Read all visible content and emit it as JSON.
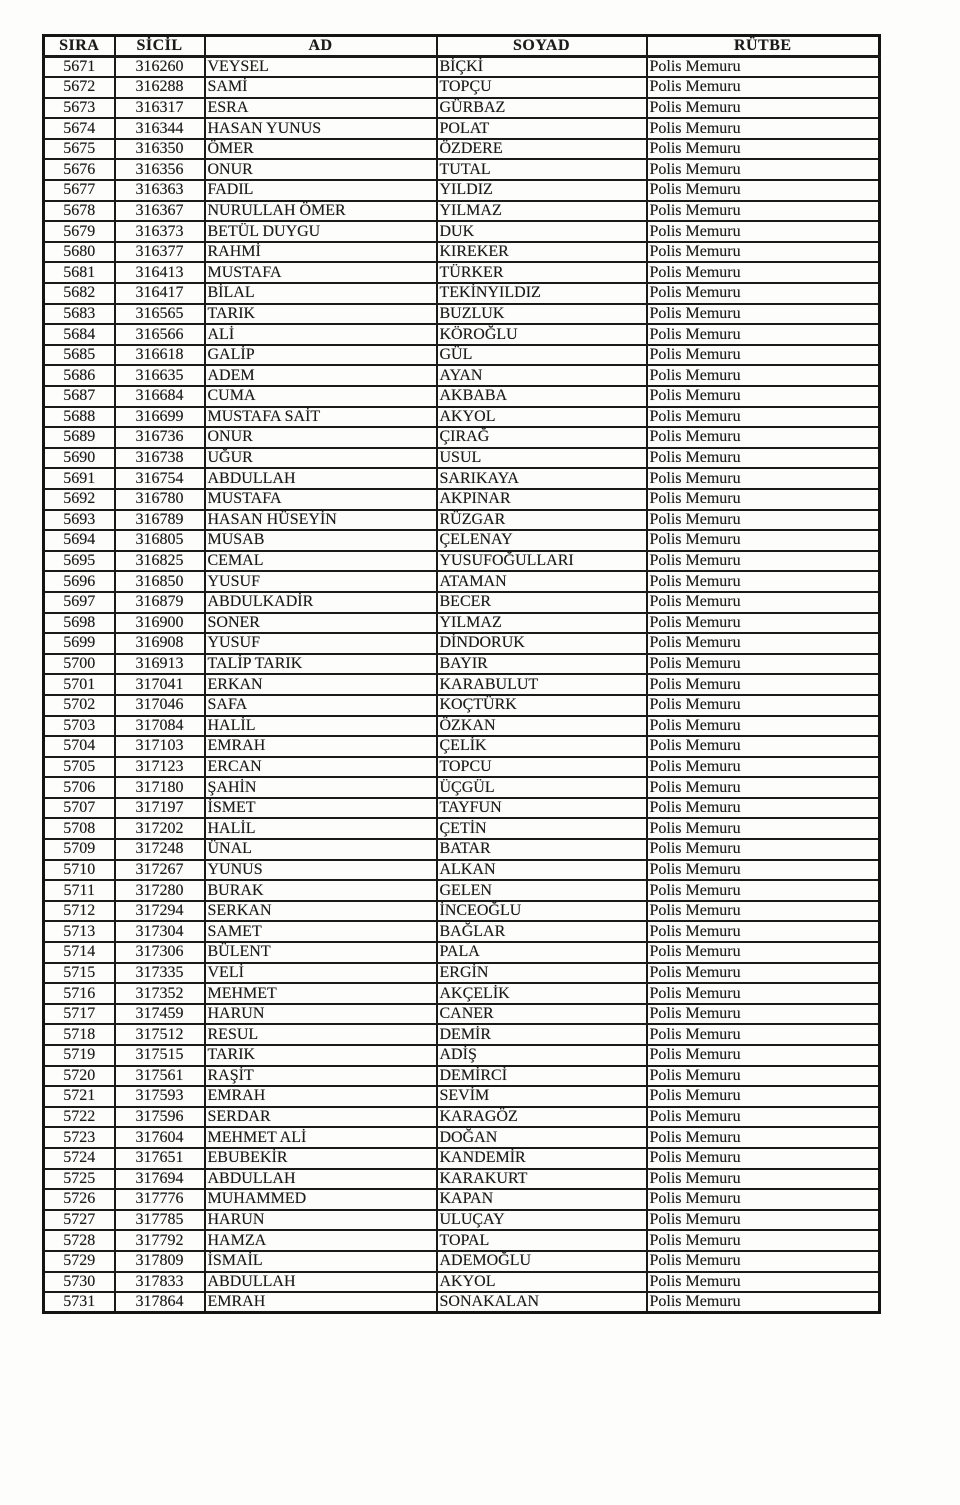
{
  "colors": {
    "ink": "#1b1b1b",
    "paper": "#fdfdfc",
    "border": "#1a1a1a"
  },
  "table": {
    "columns": [
      "SIRA",
      "SİCİL",
      "AD",
      "SOYAD",
      "RÜTBE"
    ],
    "rows": [
      [
        "5671",
        "316260",
        "VEYSEL",
        "BİÇKİ",
        "Polis Memuru"
      ],
      [
        "5672",
        "316288",
        "SAMİ",
        "TOPÇU",
        "Polis Memuru"
      ],
      [
        "5673",
        "316317",
        "ESRA",
        "GÜRBAZ",
        "Polis Memuru"
      ],
      [
        "5674",
        "316344",
        "HASAN YUNUS",
        "POLAT",
        "Polis Memuru"
      ],
      [
        "5675",
        "316350",
        "ÖMER",
        "ÖZDERE",
        "Polis Memuru"
      ],
      [
        "5676",
        "316356",
        "ONUR",
        "TUTAL",
        "Polis Memuru"
      ],
      [
        "5677",
        "316363",
        "FADIL",
        "YILDIZ",
        "Polis Memuru"
      ],
      [
        "5678",
        "316367",
        "NURULLAH ÖMER",
        "YILMAZ",
        "Polis Memuru"
      ],
      [
        "5679",
        "316373",
        "BETÜL DUYGU",
        "DUK",
        "Polis Memuru"
      ],
      [
        "5680",
        "316377",
        "RAHMİ",
        "KIREKER",
        "Polis Memuru"
      ],
      [
        "5681",
        "316413",
        "MUSTAFA",
        "TÜRKER",
        "Polis Memuru"
      ],
      [
        "5682",
        "316417",
        "BİLAL",
        "TEKİNYILDIZ",
        "Polis Memuru"
      ],
      [
        "5683",
        "316565",
        "TARIK",
        "BUZLUK",
        "Polis Memuru"
      ],
      [
        "5684",
        "316566",
        "ALİ",
        "KÖROĞLU",
        "Polis Memuru"
      ],
      [
        "5685",
        "316618",
        "GALİP",
        "GÜL",
        "Polis Memuru"
      ],
      [
        "5686",
        "316635",
        "ADEM",
        "AYAN",
        "Polis Memuru"
      ],
      [
        "5687",
        "316684",
        "CUMA",
        "AKBABA",
        "Polis Memuru"
      ],
      [
        "5688",
        "316699",
        "MUSTAFA SAİT",
        "AKYOL",
        "Polis Memuru"
      ],
      [
        "5689",
        "316736",
        "ONUR",
        "ÇIRAĞ",
        "Polis Memuru"
      ],
      [
        "5690",
        "316738",
        "UĞUR",
        "USUL",
        "Polis Memuru"
      ],
      [
        "5691",
        "316754",
        "ABDULLAH",
        "SARIKAYA",
        "Polis Memuru"
      ],
      [
        "5692",
        "316780",
        "MUSTAFA",
        "AKPINAR",
        "Polis Memuru"
      ],
      [
        "5693",
        "316789",
        "HASAN HÜSEYİN",
        "RÜZGAR",
        "Polis Memuru"
      ],
      [
        "5694",
        "316805",
        "MUSAB",
        "ÇELENAY",
        "Polis Memuru"
      ],
      [
        "5695",
        "316825",
        "CEMAL",
        "YUSUFOĞULLARI",
        "Polis Memuru"
      ],
      [
        "5696",
        "316850",
        "YUSUF",
        "ATAMAN",
        "Polis Memuru"
      ],
      [
        "5697",
        "316879",
        "ABDULKADİR",
        "BECER",
        "Polis Memuru"
      ],
      [
        "5698",
        "316900",
        "SONER",
        "YILMAZ",
        "Polis Memuru"
      ],
      [
        "5699",
        "316908",
        "YUSUF",
        "DİNDORUK",
        "Polis Memuru"
      ],
      [
        "5700",
        "316913",
        "TALİP TARIK",
        "BAYIR",
        "Polis Memuru"
      ],
      [
        "5701",
        "317041",
        "ERKAN",
        "KARABULUT",
        "Polis Memuru"
      ],
      [
        "5702",
        "317046",
        "SAFA",
        "KOÇTÜRK",
        "Polis Memuru"
      ],
      [
        "5703",
        "317084",
        "HALİL",
        "ÖZKAN",
        "Polis Memuru"
      ],
      [
        "5704",
        "317103",
        "EMRAH",
        "ÇELİK",
        "Polis Memuru"
      ],
      [
        "5705",
        "317123",
        "ERCAN",
        "TOPCU",
        "Polis Memuru"
      ],
      [
        "5706",
        "317180",
        "ŞAHİN",
        "ÜÇGÜL",
        "Polis Memuru"
      ],
      [
        "5707",
        "317197",
        "İSMET",
        "TAYFUN",
        "Polis Memuru"
      ],
      [
        "5708",
        "317202",
        "HALİL",
        "ÇETİN",
        "Polis Memuru"
      ],
      [
        "5709",
        "317248",
        "ÜNAL",
        "BATAR",
        "Polis Memuru"
      ],
      [
        "5710",
        "317267",
        "YUNUS",
        "ALKAN",
        "Polis Memuru"
      ],
      [
        "5711",
        "317280",
        "BURAK",
        "GELEN",
        "Polis Memuru"
      ],
      [
        "5712",
        "317294",
        "SERKAN",
        "İNCEOĞLU",
        "Polis Memuru"
      ],
      [
        "5713",
        "317304",
        "SAMET",
        "BAĞLAR",
        "Polis Memuru"
      ],
      [
        "5714",
        "317306",
        "BÜLENT",
        "PALA",
        "Polis Memuru"
      ],
      [
        "5715",
        "317335",
        "VELİ",
        "ERGİN",
        "Polis Memuru"
      ],
      [
        "5716",
        "317352",
        "MEHMET",
        "AKÇELİK",
        "Polis Memuru"
      ],
      [
        "5717",
        "317459",
        "HARUN",
        "CANER",
        "Polis Memuru"
      ],
      [
        "5718",
        "317512",
        "RESUL",
        "DEMİR",
        "Polis Memuru"
      ],
      [
        "5719",
        "317515",
        "TARIK",
        "ADİŞ",
        "Polis Memuru"
      ],
      [
        "5720",
        "317561",
        "RAŞİT",
        "DEMİRCİ",
        "Polis Memuru"
      ],
      [
        "5721",
        "317593",
        "EMRAH",
        "SEVİM",
        "Polis Memuru"
      ],
      [
        "5722",
        "317596",
        "SERDAR",
        "KARAGÖZ",
        "Polis Memuru"
      ],
      [
        "5723",
        "317604",
        "MEHMET ALİ",
        "DOĞAN",
        "Polis Memuru"
      ],
      [
        "5724",
        "317651",
        "EBUBEKİR",
        "KANDEMİR",
        "Polis Memuru"
      ],
      [
        "5725",
        "317694",
        "ABDULLAH",
        "KARAKURT",
        "Polis Memuru"
      ],
      [
        "5726",
        "317776",
        "MUHAMMED",
        "KAPAN",
        "Polis Memuru"
      ],
      [
        "5727",
        "317785",
        "HARUN",
        "ULUÇAY",
        "Polis Memuru"
      ],
      [
        "5728",
        "317792",
        "HAMZA",
        "TOPAL",
        "Polis Memuru"
      ],
      [
        "5729",
        "317809",
        "İSMAİL",
        "ADEMOĞLU",
        "Polis Memuru"
      ],
      [
        "5730",
        "317833",
        "ABDULLAH",
        "AKYOL",
        "Polis Memuru"
      ],
      [
        "5731",
        "317864",
        "EMRAH",
        "SONAKALAN",
        "Polis Memuru"
      ]
    ]
  }
}
